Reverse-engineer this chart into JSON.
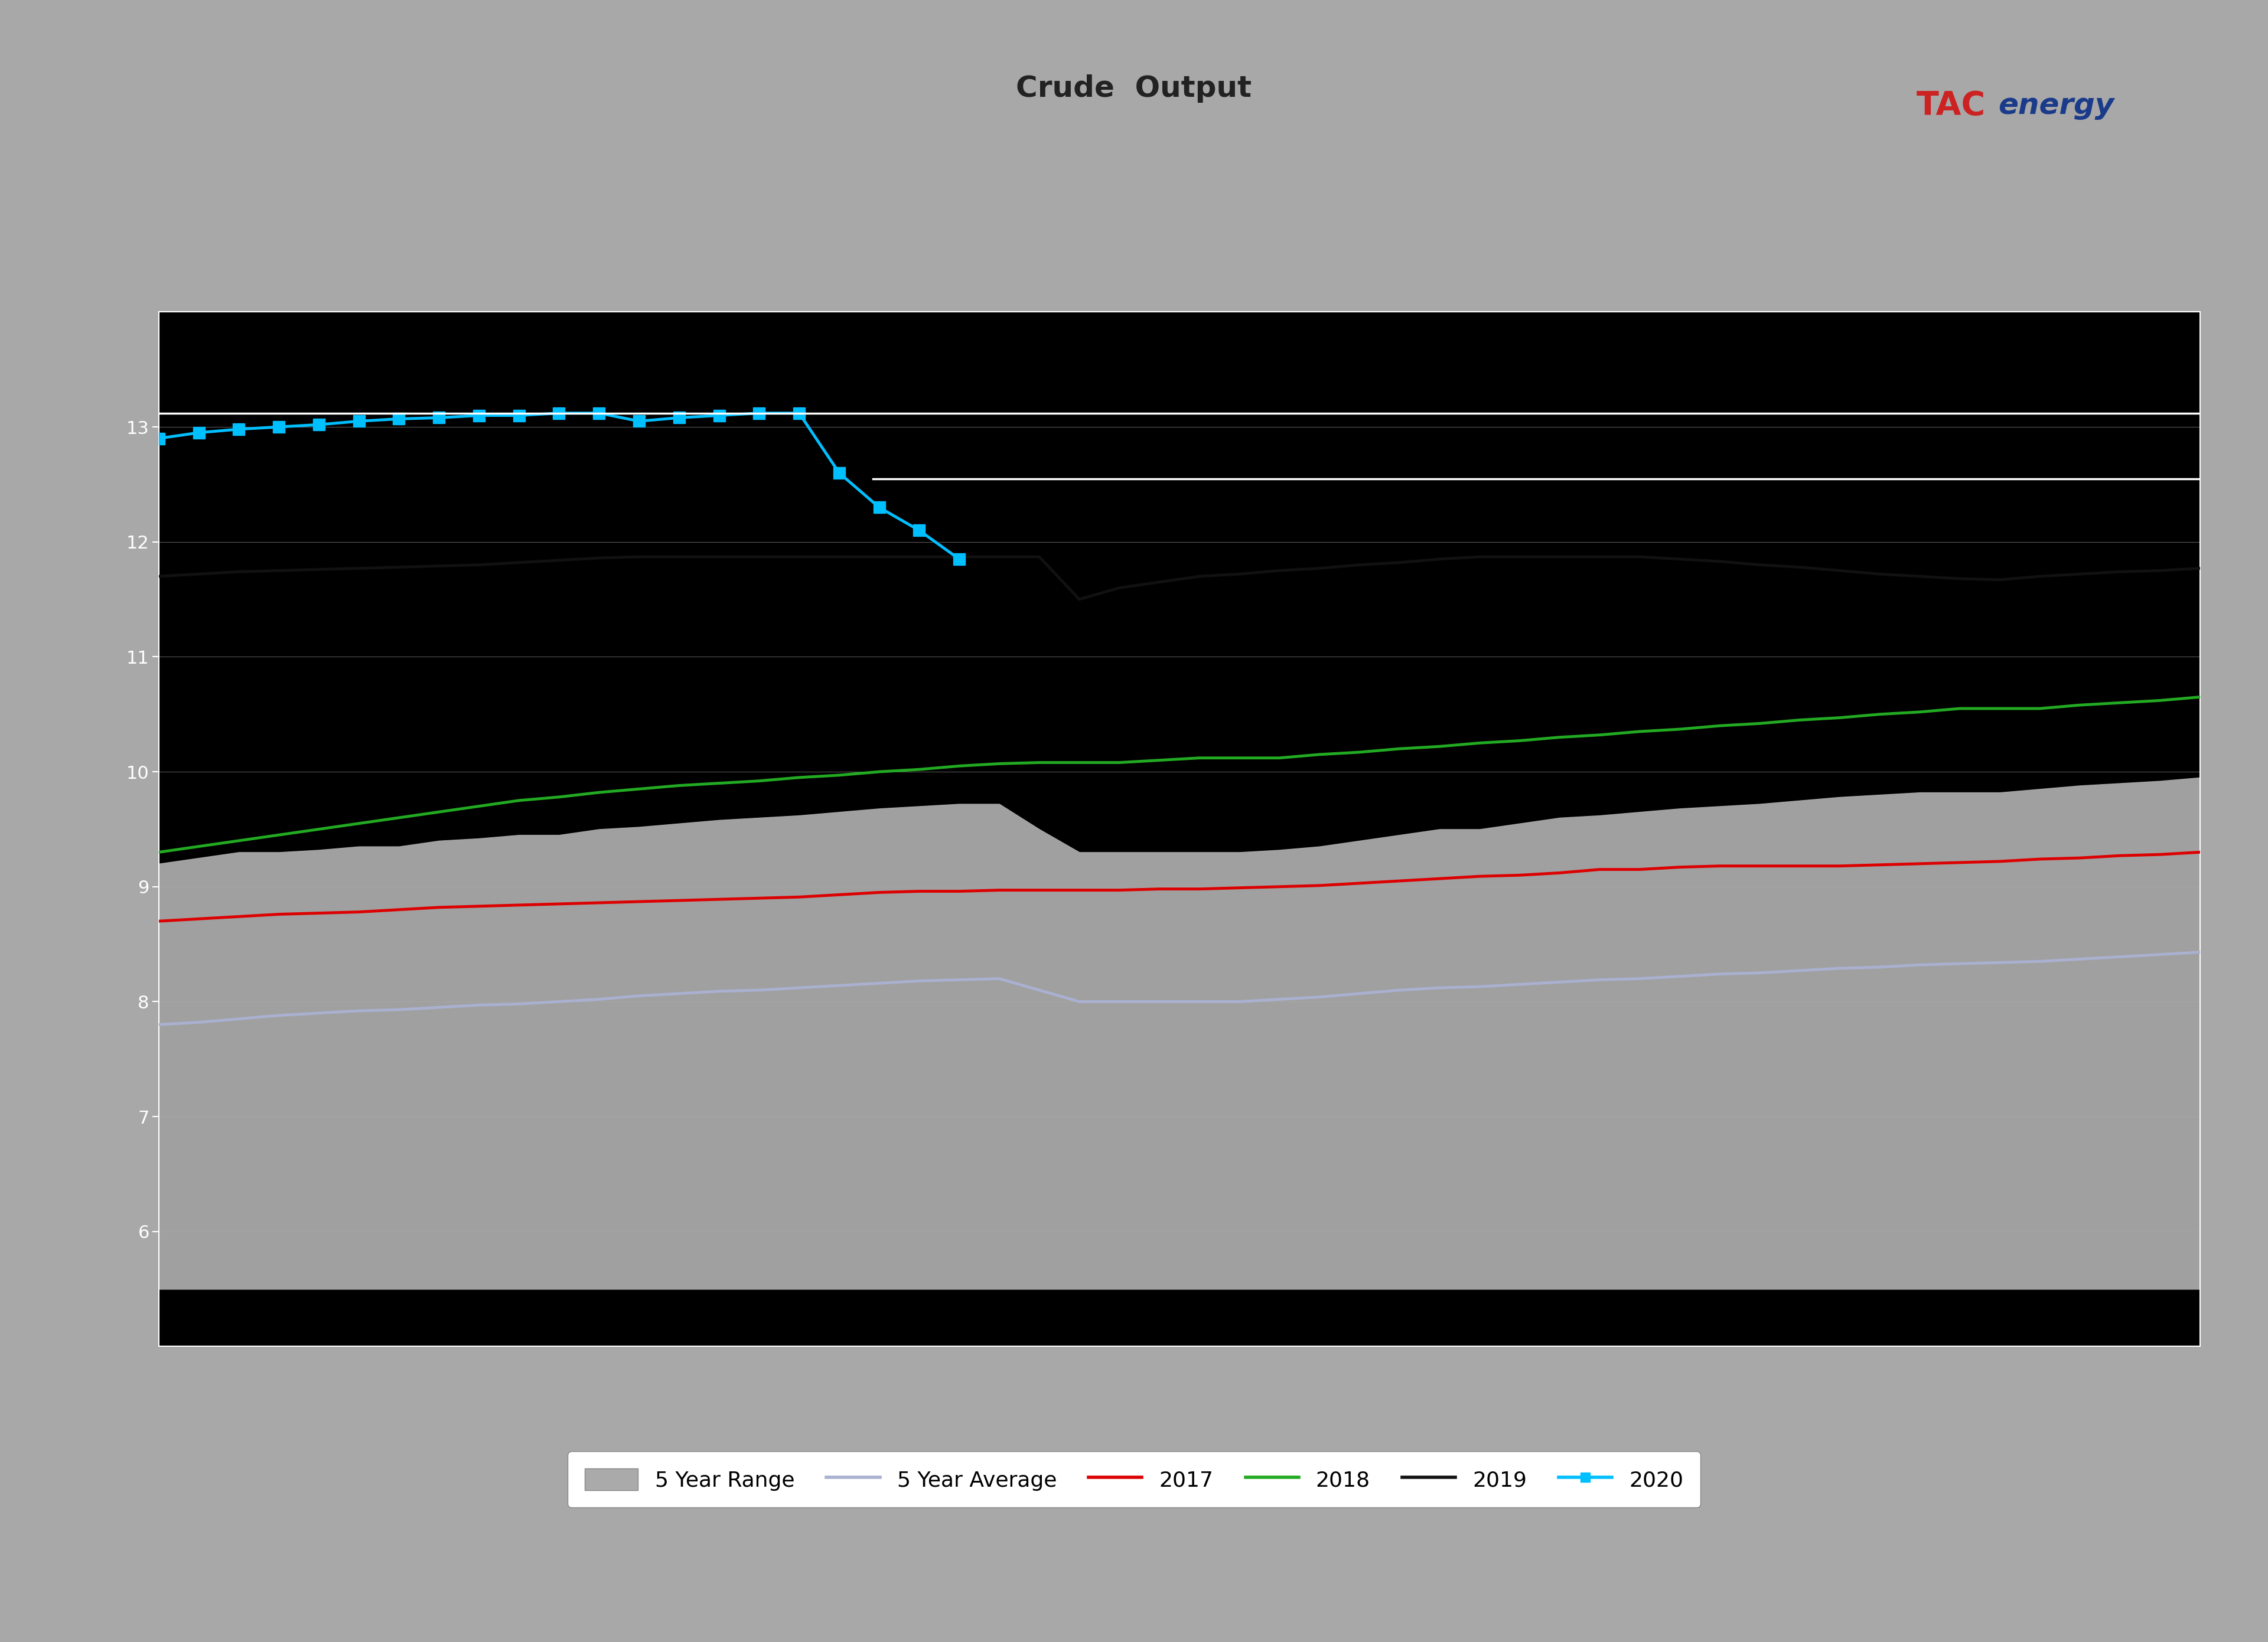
{
  "title": "Crude  Output",
  "title_fontsize": 36,
  "title_color": "#222222",
  "header_bg": "#a8a8a8",
  "banner_color": "#1a3a8a",
  "plot_bg": "#000000",
  "fig_bg": "#a8a8a8",
  "weeks": 52,
  "five_yr_range_color": "#aaaaaa",
  "five_yr_range_alpha": 1.0,
  "five_yr_avg_color": "#aab0d0",
  "yr2017_color": "#dd0000",
  "yr2018_color": "#22aa22",
  "yr2019_color": "#111111",
  "yr2020_color": "#00bfff",
  "legend_labels": [
    "5 Year Range",
    "5 Year Average",
    "2017",
    "2018",
    "2019",
    "2020"
  ],
  "five_yr_low": [
    5.5,
    5.5,
    5.5,
    5.5,
    5.5,
    5.5,
    5.5,
    5.5,
    5.5,
    5.5,
    5.5,
    5.5,
    5.5,
    5.5,
    5.5,
    5.5,
    5.5,
    5.5,
    5.5,
    5.5,
    5.5,
    5.5,
    5.5,
    5.5,
    5.5,
    5.5,
    5.5,
    5.5,
    5.5,
    5.5,
    5.5,
    5.5,
    5.5,
    5.5,
    5.5,
    5.5,
    5.5,
    5.5,
    5.5,
    5.5,
    5.5,
    5.5,
    5.5,
    5.5,
    5.5,
    5.5,
    5.5,
    5.5,
    5.5,
    5.5,
    5.5,
    5.5
  ],
  "five_yr_high": [
    9.2,
    9.25,
    9.3,
    9.3,
    9.32,
    9.35,
    9.35,
    9.4,
    9.42,
    9.45,
    9.45,
    9.5,
    9.52,
    9.55,
    9.58,
    9.6,
    9.62,
    9.65,
    9.68,
    9.7,
    9.72,
    9.72,
    9.5,
    9.3,
    9.3,
    9.3,
    9.3,
    9.3,
    9.32,
    9.35,
    9.4,
    9.45,
    9.5,
    9.5,
    9.55,
    9.6,
    9.62,
    9.65,
    9.68,
    9.7,
    9.72,
    9.75,
    9.78,
    9.8,
    9.82,
    9.82,
    9.82,
    9.85,
    9.88,
    9.9,
    9.92,
    9.95
  ],
  "five_yr_avg": [
    7.8,
    7.82,
    7.85,
    7.88,
    7.9,
    7.92,
    7.93,
    7.95,
    7.97,
    7.98,
    8.0,
    8.02,
    8.05,
    8.07,
    8.09,
    8.1,
    8.12,
    8.14,
    8.16,
    8.18,
    8.19,
    8.2,
    8.1,
    8.0,
    8.0,
    8.0,
    8.0,
    8.0,
    8.02,
    8.04,
    8.07,
    8.1,
    8.12,
    8.13,
    8.15,
    8.17,
    8.19,
    8.2,
    8.22,
    8.24,
    8.25,
    8.27,
    8.29,
    8.3,
    8.32,
    8.33,
    8.34,
    8.35,
    8.37,
    8.39,
    8.41,
    8.43
  ],
  "yr2017": [
    8.7,
    8.72,
    8.74,
    8.76,
    8.77,
    8.78,
    8.8,
    8.82,
    8.83,
    8.84,
    8.85,
    8.86,
    8.87,
    8.88,
    8.89,
    8.9,
    8.91,
    8.93,
    8.95,
    8.96,
    8.96,
    8.97,
    8.97,
    8.97,
    8.97,
    8.98,
    8.98,
    8.99,
    9.0,
    9.01,
    9.03,
    9.05,
    9.07,
    9.09,
    9.1,
    9.12,
    9.15,
    9.15,
    9.17,
    9.18,
    9.18,
    9.18,
    9.18,
    9.19,
    9.2,
    9.21,
    9.22,
    9.24,
    9.25,
    9.27,
    9.28,
    9.3
  ],
  "yr2018": [
    9.3,
    9.35,
    9.4,
    9.45,
    9.5,
    9.55,
    9.6,
    9.65,
    9.7,
    9.75,
    9.78,
    9.82,
    9.85,
    9.88,
    9.9,
    9.92,
    9.95,
    9.97,
    10.0,
    10.02,
    10.05,
    10.07,
    10.08,
    10.08,
    10.08,
    10.1,
    10.12,
    10.12,
    10.12,
    10.15,
    10.17,
    10.2,
    10.22,
    10.25,
    10.27,
    10.3,
    10.32,
    10.35,
    10.37,
    10.4,
    10.42,
    10.45,
    10.47,
    10.5,
    10.52,
    10.55,
    10.55,
    10.55,
    10.58,
    10.6,
    10.62,
    10.65
  ],
  "yr2019": [
    11.7,
    11.72,
    11.74,
    11.75,
    11.76,
    11.77,
    11.78,
    11.79,
    11.8,
    11.82,
    11.84,
    11.86,
    11.87,
    11.87,
    11.87,
    11.87,
    11.87,
    11.87,
    11.87,
    11.87,
    11.87,
    11.87,
    11.87,
    11.5,
    11.6,
    11.65,
    11.7,
    11.72,
    11.75,
    11.77,
    11.8,
    11.82,
    11.85,
    11.87,
    11.87,
    11.87,
    11.87,
    11.87,
    11.85,
    11.83,
    11.8,
    11.78,
    11.75,
    11.72,
    11.7,
    11.68,
    11.67,
    11.7,
    11.72,
    11.74,
    11.75,
    11.77
  ],
  "yr2020_x": [
    0,
    1,
    2,
    3,
    4,
    5,
    6,
    7,
    8,
    9,
    10,
    11,
    12,
    13,
    14,
    15,
    16,
    17,
    18,
    19,
    20
  ],
  "yr2020": [
    12.9,
    12.95,
    12.98,
    13.0,
    13.02,
    13.05,
    13.07,
    13.08,
    13.1,
    13.1,
    13.12,
    13.12,
    13.05,
    13.08,
    13.1,
    13.12,
    13.12,
    12.6,
    12.3,
    12.1,
    11.85
  ],
  "ymin": 5.0,
  "ymax": 14.0,
  "ytick_values": [
    6.0,
    7.0,
    8.0,
    9.0,
    10.0,
    11.0,
    12.0,
    13.0
  ],
  "xmin": 0,
  "xmax": 51,
  "white_hline_y1": 13.12,
  "white_hline_y2": 12.55,
  "logo_text_TAC": "TAC",
  "logo_text_energy": "energy"
}
